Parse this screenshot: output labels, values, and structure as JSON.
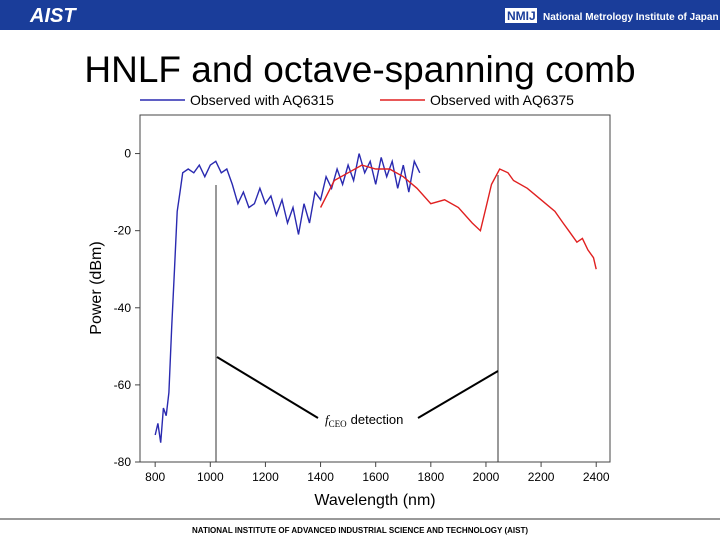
{
  "header": {
    "logo": "AIST",
    "org_logo": "NMIJ",
    "org": "National Metrology Institute of Japan"
  },
  "footer": "NATIONAL INSTITUTE OF ADVANCED INDUSTRIAL SCIENCE AND TECHNOLOGY (AIST)",
  "chart_data": {
    "type": "line",
    "title": "HNLF and octave-spanning comb",
    "xlabel": "Wavelength (nm)",
    "ylabel": "Power (dBm)",
    "annotation": {
      "symbol": "f",
      "subscript": "CEO",
      "text": "detection"
    },
    "xlim": [
      745,
      2450
    ],
    "ylim": [
      -80,
      10
    ],
    "xticks": [
      800,
      1000,
      1200,
      1400,
      1600,
      1800,
      2000,
      2200,
      2400
    ],
    "yticks": [
      0,
      -20,
      -40,
      -60,
      -80
    ],
    "series": [
      {
        "name": "Observed with AQ6315",
        "color": "#2a2ab0",
        "x": [
          800,
          810,
          820,
          830,
          840,
          850,
          860,
          870,
          880,
          890,
          900,
          920,
          940,
          960,
          980,
          1000,
          1020,
          1040,
          1060,
          1080,
          1100,
          1120,
          1140,
          1160,
          1180,
          1200,
          1220,
          1240,
          1260,
          1280,
          1300,
          1320,
          1340,
          1360,
          1380,
          1400,
          1420,
          1440,
          1460,
          1480,
          1500,
          1520,
          1540,
          1560,
          1580,
          1600,
          1620,
          1640,
          1660,
          1680,
          1700,
          1720,
          1740,
          1760
        ],
        "values": [
          -73,
          -70,
          -75,
          -66,
          -68,
          -62,
          -45,
          -30,
          -15,
          -10,
          -5,
          -4,
          -5,
          -3,
          -6,
          -3,
          -2,
          -5,
          -4,
          -8,
          -13,
          -10,
          -14,
          -13,
          -9,
          -13,
          -11,
          -16,
          -12,
          -18,
          -14,
          -21,
          -13,
          -18,
          -10,
          -12,
          -6,
          -9,
          -4,
          -8,
          -3,
          -7,
          0,
          -5,
          -2,
          -8,
          -1,
          -6,
          -2,
          -9,
          -3,
          -10,
          -2,
          -5
        ]
      },
      {
        "name": "Observed with AQ6375",
        "color": "#e02020",
        "x": [
          1400,
          1450,
          1500,
          1550,
          1600,
          1650,
          1700,
          1750,
          1800,
          1850,
          1900,
          1950,
          1980,
          2000,
          2020,
          2050,
          2080,
          2100,
          2150,
          2200,
          2250,
          2280,
          2300,
          2330,
          2350,
          2370,
          2390,
          2400
        ],
        "values": [
          -14,
          -7,
          -5,
          -3,
          -4,
          -4,
          -6,
          -9,
          -13,
          -12,
          -14,
          -18,
          -20,
          -14,
          -8,
          -4,
          -5,
          -7,
          -9,
          -12,
          -15,
          -18,
          -20,
          -23,
          -22,
          -25,
          -27,
          -30
        ]
      }
    ]
  }
}
